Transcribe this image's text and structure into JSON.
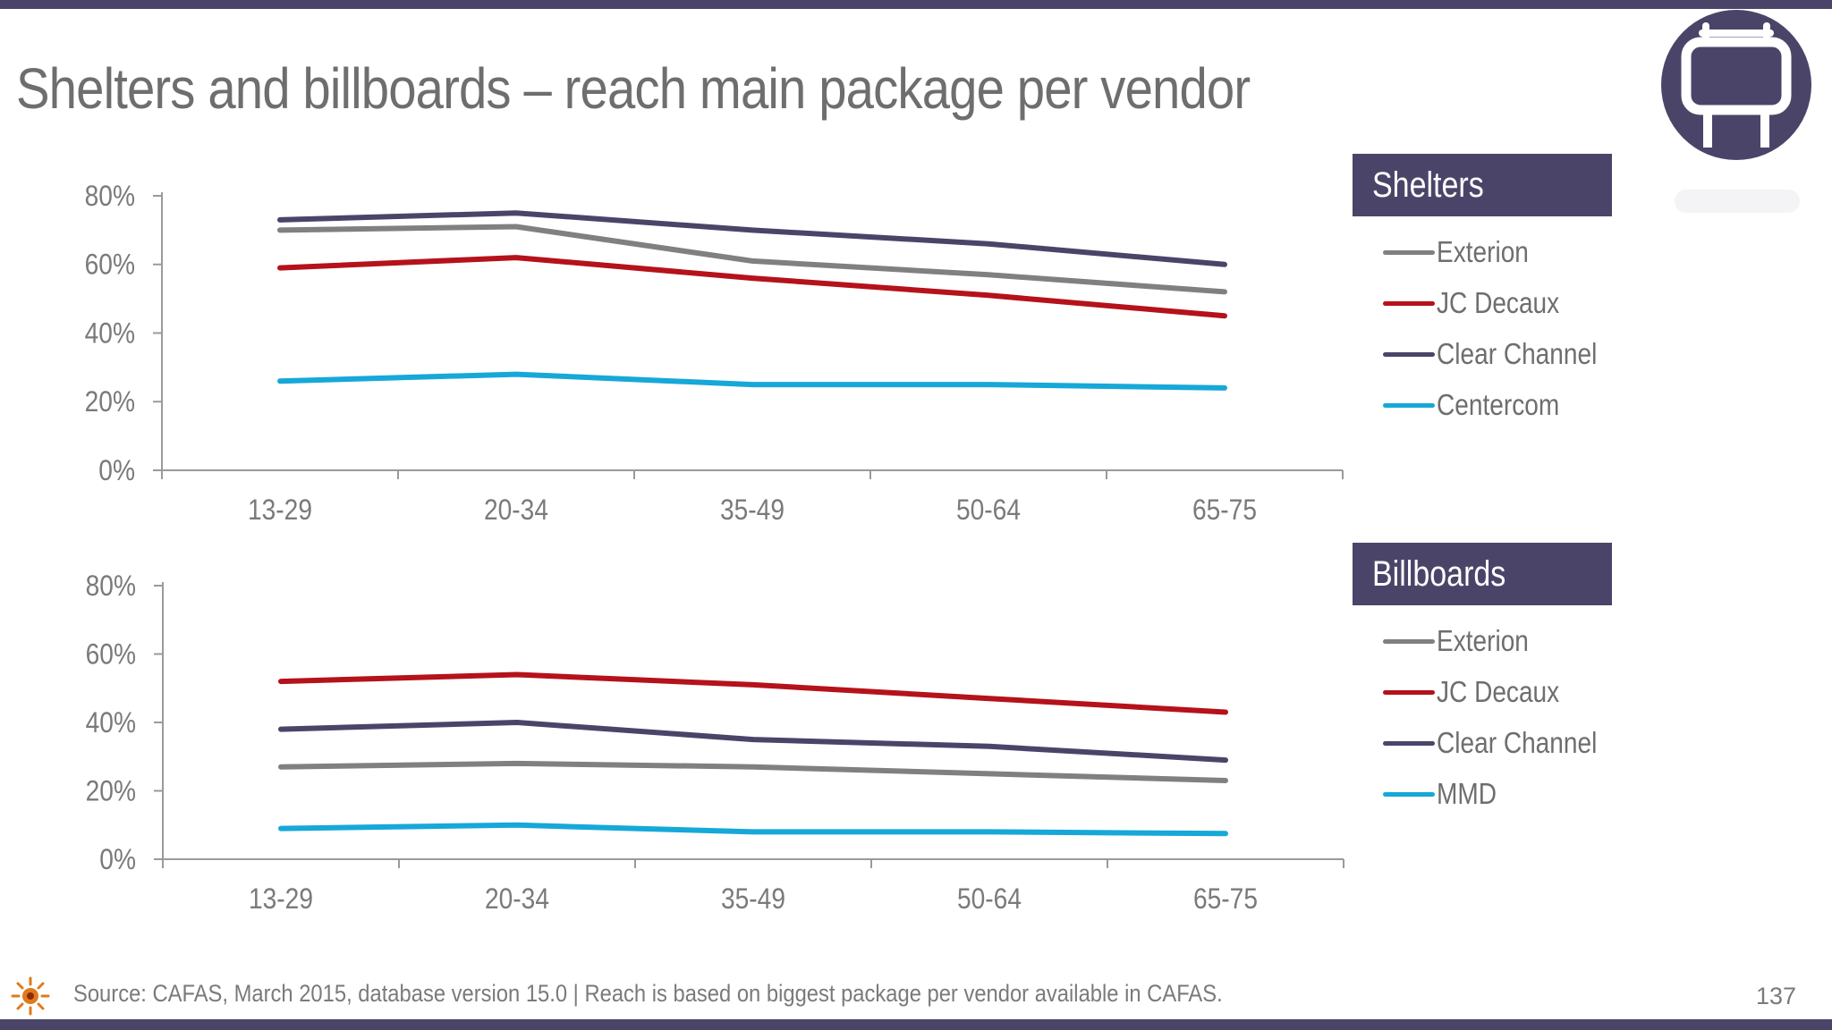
{
  "title": "Shelters and billboards – reach main package per vendor",
  "footer": {
    "source": "Source: CAFAS, March 2015, database version 15.0 | Reach is based on biggest package per vendor available in CAFAS.",
    "page_number": "137"
  },
  "icons": {
    "header_badge": "billboard-icon",
    "footer_logo": "sun-logo-icon"
  },
  "colors": {
    "brand": "#4a4568",
    "Exterion": "#808080",
    "JC Decaux": "#b5121b",
    "Clear Channel": "#4a4568",
    "Centercom": "#16a8d8",
    "MMD": "#16a8d8"
  },
  "chart_data": [
    {
      "type": "line",
      "title": "Shelters",
      "categories": [
        "13-29",
        "20-34",
        "35-49",
        "50-64",
        "65-75"
      ],
      "y_ticks": [
        "0%",
        "20%",
        "40%",
        "60%",
        "80%"
      ],
      "ylim": [
        0,
        80
      ],
      "grid": false,
      "legend_position": "right",
      "series": [
        {
          "name": "Exterion",
          "values": [
            70,
            71,
            61,
            57,
            52
          ]
        },
        {
          "name": "JC Decaux",
          "values": [
            59,
            62,
            56,
            51,
            45
          ]
        },
        {
          "name": "Clear Channel",
          "values": [
            73,
            75,
            70,
            66,
            60
          ]
        },
        {
          "name": "Centercom",
          "values": [
            26,
            28,
            25,
            25,
            24
          ]
        }
      ]
    },
    {
      "type": "line",
      "title": "Billboards",
      "categories": [
        "13-29",
        "20-34",
        "35-49",
        "50-64",
        "65-75"
      ],
      "y_ticks": [
        "0%",
        "20%",
        "40%",
        "60%",
        "80%"
      ],
      "ylim": [
        0,
        80
      ],
      "grid": false,
      "legend_position": "right",
      "series": [
        {
          "name": "Exterion",
          "values": [
            27,
            28,
            27,
            25,
            23
          ]
        },
        {
          "name": "JC Decaux",
          "values": [
            52,
            54,
            51,
            47,
            43
          ]
        },
        {
          "name": "Clear Channel",
          "values": [
            38,
            40,
            35,
            33,
            29
          ]
        },
        {
          "name": "MMD",
          "values": [
            9,
            10,
            8,
            8,
            7.5
          ]
        }
      ]
    }
  ]
}
